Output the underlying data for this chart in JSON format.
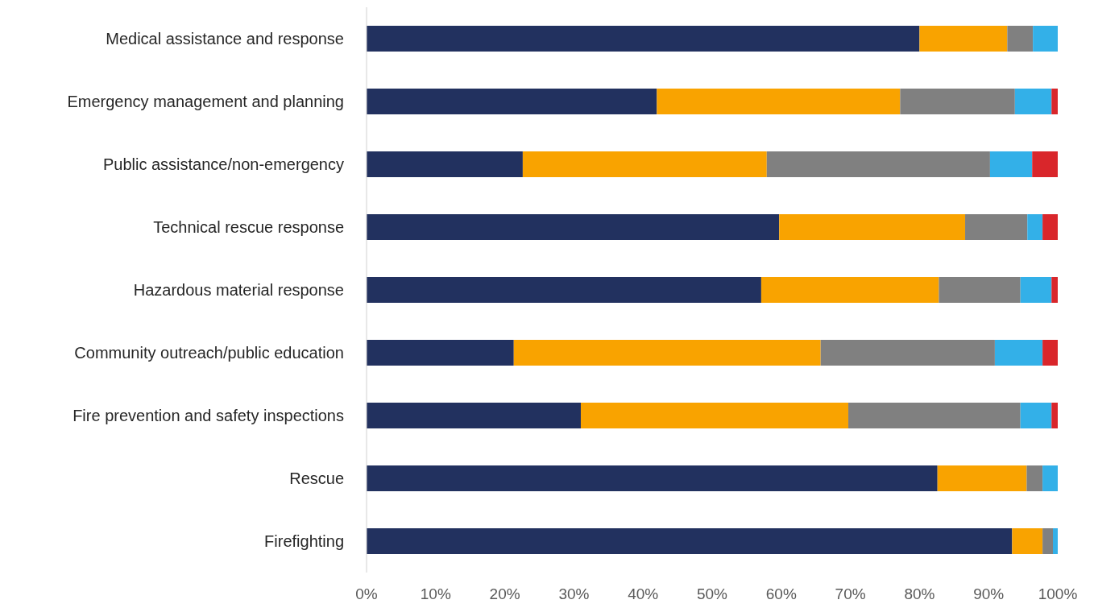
{
  "chart_data": {
    "type": "bar",
    "orientation": "horizontal",
    "stacked": true,
    "categories": [
      "Medical assistance and response",
      "Emergency management and planning",
      "Public assistance/non-emergency",
      "Technical rescue response",
      "Hazardous material response",
      "Community outreach/public education",
      "Fire prevention and safety inspections",
      "Rescue",
      "Firefighting"
    ],
    "series": [
      {
        "color": "#22315f",
        "values": [
          80.0,
          42.0,
          22.6,
          59.7,
          57.1,
          21.3,
          31.0,
          82.6,
          93.4
        ]
      },
      {
        "color": "#f9a300",
        "values": [
          12.7,
          35.2,
          35.3,
          26.9,
          25.7,
          44.4,
          38.7,
          12.9,
          4.4
        ]
      },
      {
        "color": "#808080",
        "values": [
          3.7,
          16.6,
          32.3,
          9.0,
          11.8,
          25.2,
          24.9,
          2.3,
          1.5
        ]
      },
      {
        "color": "#33b0e8",
        "values": [
          3.6,
          5.3,
          6.1,
          2.2,
          4.5,
          6.9,
          4.5,
          2.2,
          0.7
        ]
      },
      {
        "color": "#d9262b",
        "values": [
          0,
          0.9,
          3.7,
          2.2,
          0.9,
          2.2,
          0.9,
          0,
          0
        ]
      }
    ],
    "xlim": [
      0,
      100
    ],
    "xticks": [
      {
        "value": 0,
        "label": "0%"
      },
      {
        "value": 10,
        "label": "10%"
      },
      {
        "value": 20,
        "label": "20%"
      },
      {
        "value": 30,
        "label": "30%"
      },
      {
        "value": 40,
        "label": "40%"
      },
      {
        "value": 50,
        "label": "50%"
      },
      {
        "value": 60,
        "label": "60%"
      },
      {
        "value": 70,
        "label": "70%"
      },
      {
        "value": 80,
        "label": "80%"
      },
      {
        "value": 90,
        "label": "90%"
      },
      {
        "value": 100,
        "label": "100%"
      }
    ],
    "grid": false,
    "legend": false
  }
}
